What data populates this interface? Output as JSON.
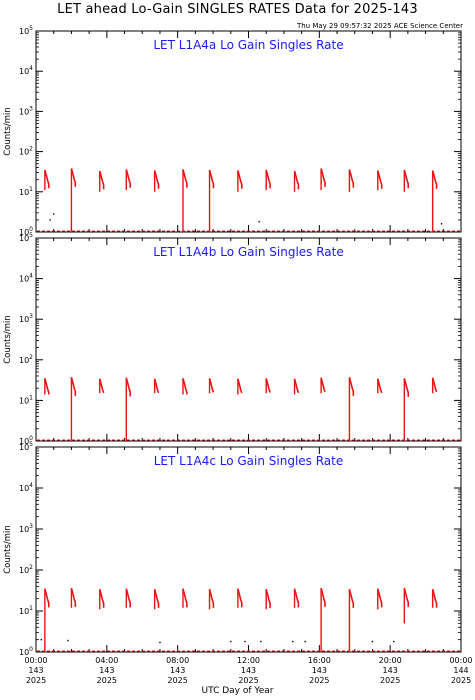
{
  "header": {
    "title": "LET ahead Lo-Gain SINGLES RATES Data for 2025-143",
    "timestamp": "Thu May 29 09:57:32 2025 ACE Science Center"
  },
  "xlabel": "UTC Day of Year",
  "colors": {
    "data": "#ee1111",
    "title": "#1a1aff",
    "axes": "#000000"
  },
  "chart_data": [
    {
      "type": "line",
      "title": "LET L1A4a Lo Gain Singles Rate",
      "ylabel": "Counts/min",
      "yscale": "log",
      "ylim": [
        1,
        100000
      ],
      "xlim": [
        0,
        24
      ],
      "baseline": 1,
      "bursts": [
        {
          "x": 0.5,
          "peak": 35,
          "low": 11
        },
        {
          "x": 2.0,
          "peak": 38,
          "low": 1
        },
        {
          "x": 3.6,
          "peak": 33,
          "low": 10
        },
        {
          "x": 5.1,
          "peak": 36,
          "low": 11
        },
        {
          "x": 6.7,
          "peak": 34,
          "low": 10
        },
        {
          "x": 8.3,
          "peak": 36,
          "low": 1
        },
        {
          "x": 9.8,
          "peak": 35,
          "low": 1
        },
        {
          "x": 11.4,
          "peak": 34,
          "low": 10
        },
        {
          "x": 13.0,
          "peak": 35,
          "low": 11
        },
        {
          "x": 14.6,
          "peak": 33,
          "low": 10
        },
        {
          "x": 16.1,
          "peak": 38,
          "low": 11
        },
        {
          "x": 17.7,
          "peak": 36,
          "low": 10
        },
        {
          "x": 19.3,
          "peak": 34,
          "low": 11
        },
        {
          "x": 20.8,
          "peak": 35,
          "low": 10
        },
        {
          "x": 22.4,
          "peak": 34,
          "low": 1
        }
      ],
      "dots": [
        [
          0.8,
          2.0
        ],
        [
          1.0,
          2.8
        ],
        [
          12.6,
          1.8
        ],
        [
          22.9,
          1.6
        ]
      ]
    },
    {
      "type": "line",
      "title": "LET L1A4b Lo Gain Singles Rate",
      "ylabel": "Counts/min",
      "yscale": "log",
      "ylim": [
        1,
        100000
      ],
      "xlim": [
        0,
        24
      ],
      "baseline": 1,
      "bursts": [
        {
          "x": 0.5,
          "peak": 35,
          "low": 14
        },
        {
          "x": 2.0,
          "peak": 37,
          "low": 1
        },
        {
          "x": 3.6,
          "peak": 34,
          "low": 15
        },
        {
          "x": 5.1,
          "peak": 36,
          "low": 1
        },
        {
          "x": 6.7,
          "peak": 34,
          "low": 15
        },
        {
          "x": 8.3,
          "peak": 35,
          "low": 14
        },
        {
          "x": 9.8,
          "peak": 35,
          "low": 15
        },
        {
          "x": 11.4,
          "peak": 34,
          "low": 14
        },
        {
          "x": 13.0,
          "peak": 35,
          "low": 15
        },
        {
          "x": 14.6,
          "peak": 34,
          "low": 14
        },
        {
          "x": 16.1,
          "peak": 36,
          "low": 15
        },
        {
          "x": 17.7,
          "peak": 37,
          "low": 1
        },
        {
          "x": 19.3,
          "peak": 34,
          "low": 15
        },
        {
          "x": 20.8,
          "peak": 35,
          "low": 1
        },
        {
          "x": 22.4,
          "peak": 36,
          "low": 15
        }
      ],
      "dots": []
    },
    {
      "type": "line",
      "title": "LET L1A4c Lo Gain Singles Rate",
      "ylabel": "Counts/min",
      "yscale": "log",
      "ylim": [
        1,
        100000
      ],
      "xlim": [
        0,
        24
      ],
      "baseline": 1,
      "bursts": [
        {
          "x": 0.5,
          "peak": 35,
          "low": 1
        },
        {
          "x": 2.0,
          "peak": 36,
          "low": 12
        },
        {
          "x": 3.6,
          "peak": 34,
          "low": 11
        },
        {
          "x": 5.1,
          "peak": 35,
          "low": 12
        },
        {
          "x": 6.7,
          "peak": 34,
          "low": 11
        },
        {
          "x": 8.3,
          "peak": 35,
          "low": 12
        },
        {
          "x": 9.8,
          "peak": 34,
          "low": 11
        },
        {
          "x": 11.4,
          "peak": 35,
          "low": 12
        },
        {
          "x": 13.0,
          "peak": 34,
          "low": 11
        },
        {
          "x": 14.6,
          "peak": 35,
          "low": 12
        },
        {
          "x": 16.1,
          "peak": 36,
          "low": 1
        },
        {
          "x": 17.7,
          "peak": 34,
          "low": 1
        },
        {
          "x": 19.3,
          "peak": 35,
          "low": 11
        },
        {
          "x": 20.8,
          "peak": 36,
          "low": 5
        },
        {
          "x": 22.4,
          "peak": 34,
          "low": 12
        }
      ],
      "dots": [
        [
          0.3,
          2.0
        ],
        [
          1.8,
          1.9
        ],
        [
          7.0,
          1.7
        ],
        [
          11.0,
          1.8
        ],
        [
          11.8,
          1.8
        ],
        [
          12.7,
          1.8
        ],
        [
          14.5,
          1.8
        ],
        [
          15.2,
          1.8
        ],
        [
          19.0,
          1.8
        ],
        [
          20.2,
          1.8
        ]
      ]
    }
  ],
  "x_ticks": [
    {
      "x": 0,
      "time": "00:00",
      "doy": "143",
      "year": "2025"
    },
    {
      "x": 4,
      "time": "04:00",
      "doy": "143",
      "year": "2025"
    },
    {
      "x": 8,
      "time": "08:00",
      "doy": "143",
      "year": "2025"
    },
    {
      "x": 12,
      "time": "12:00",
      "doy": "143",
      "year": "2025"
    },
    {
      "x": 16,
      "time": "16:00",
      "doy": "143",
      "year": "2025"
    },
    {
      "x": 20,
      "time": "20:00",
      "doy": "143",
      "year": "2025"
    },
    {
      "x": 24,
      "time": "00:00",
      "doy": "144",
      "year": "2025"
    }
  ]
}
